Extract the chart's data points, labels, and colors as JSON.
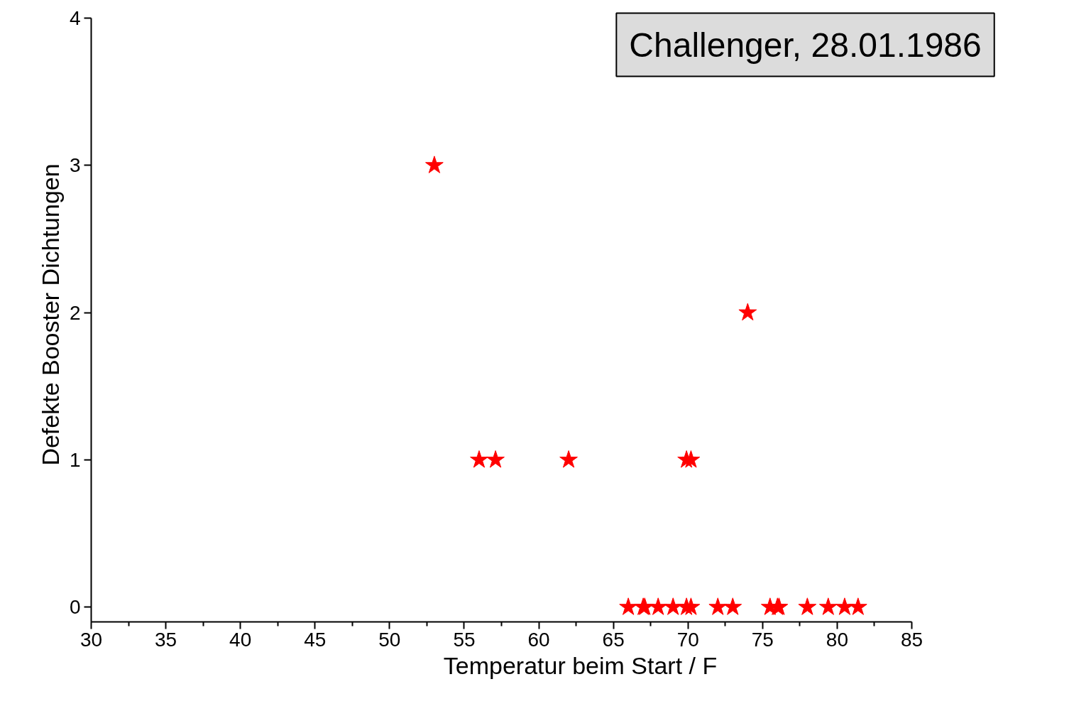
{
  "chart_data": {
    "type": "scatter",
    "title": "Challenger, 28.01.1986",
    "xlabel": "Temperatur beim Start / F",
    "ylabel": "Defekte Booster Dichtungen",
    "marker": "star",
    "grid": false,
    "xlim": [
      30,
      85
    ],
    "ylim": [
      -0.1,
      4
    ],
    "xticks": [
      30,
      35,
      40,
      45,
      50,
      55,
      60,
      65,
      70,
      75,
      80,
      85
    ],
    "yticks": [
      0,
      1,
      2,
      3,
      4
    ],
    "series": [
      {
        "color": "#ff0000",
        "x": [
          53,
          56,
          57.1,
          62,
          69.9,
          70.2,
          74,
          66,
          67,
          67.1,
          68,
          69,
          69.9,
          70.2,
          72,
          73,
          75.5,
          76,
          76.1,
          78,
          79.4,
          80.5,
          81.4
        ],
        "values": [
          3,
          1,
          1,
          1,
          1,
          1,
          2,
          0,
          0,
          0,
          0,
          0,
          0,
          0,
          0,
          0,
          0,
          0,
          0,
          0,
          0,
          0,
          0
        ]
      }
    ]
  }
}
